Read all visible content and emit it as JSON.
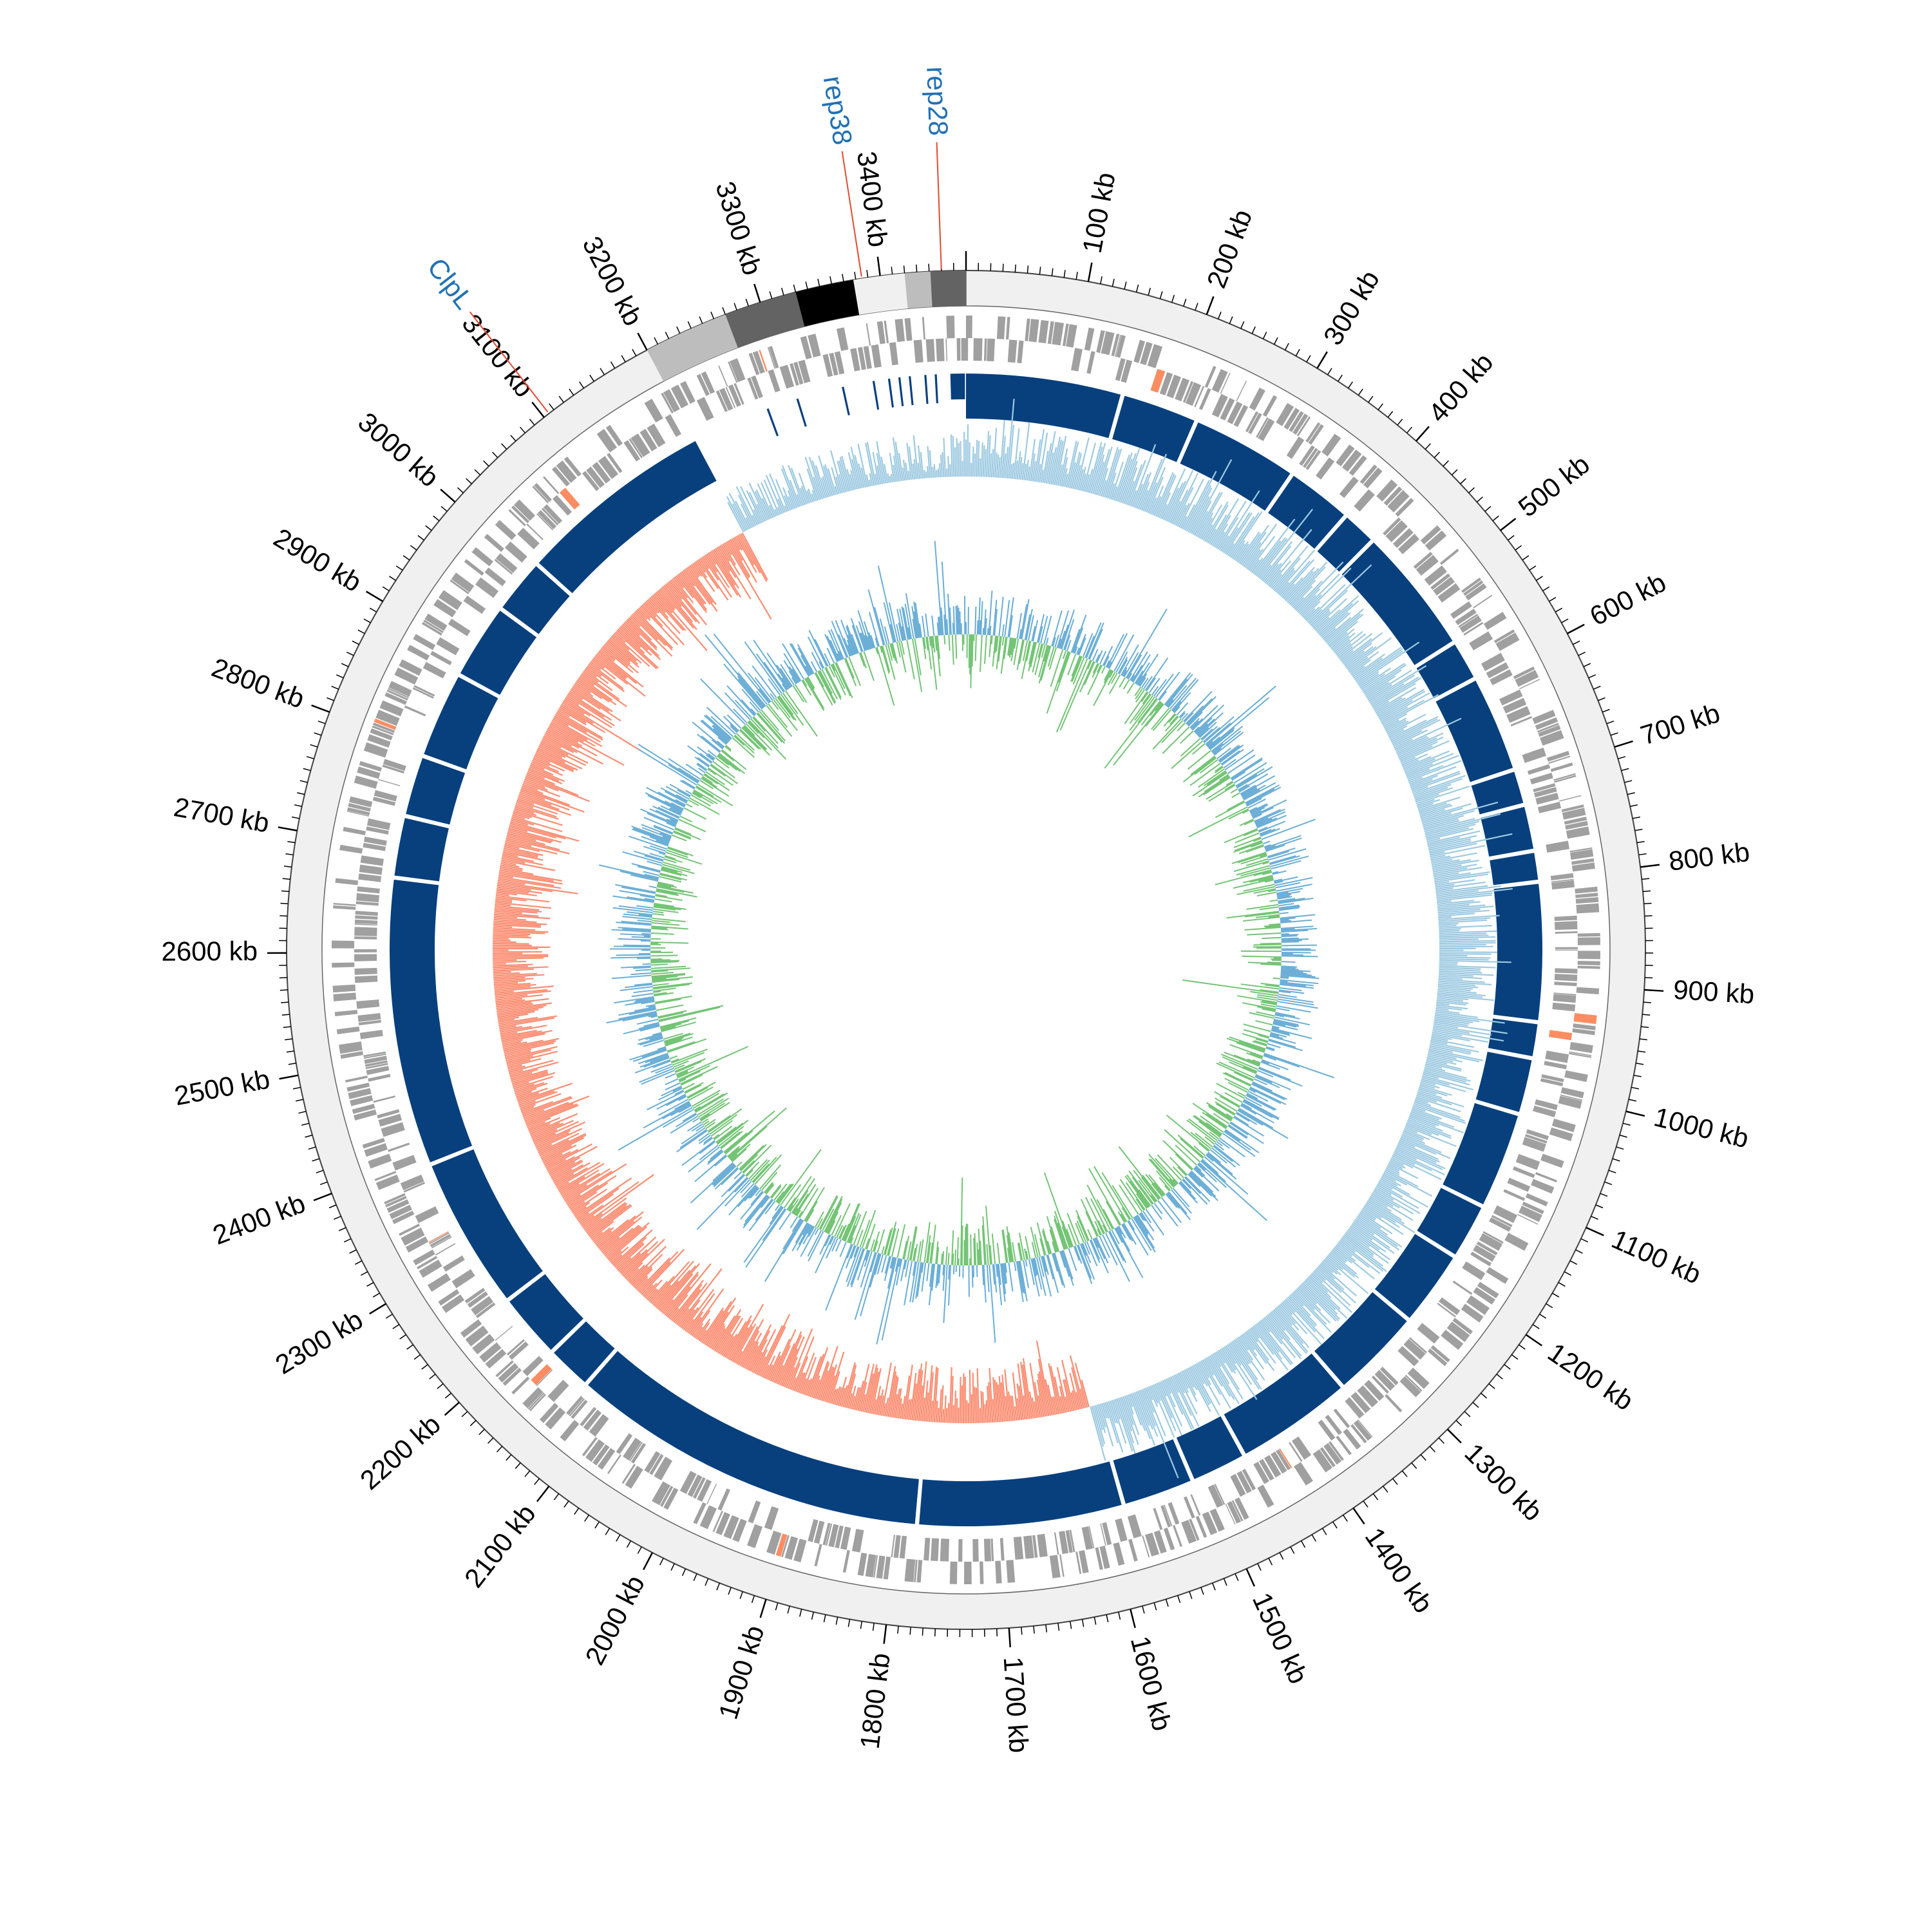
{
  "genome": {
    "length_kb": 3470,
    "tick_labels": [
      "100 kb",
      "200 kb",
      "300 kb",
      "400 kb",
      "500 kb",
      "600 kb",
      "700 kb",
      "800 kb",
      "900 kb",
      "1000 kb",
      "1100 kb",
      "1200 kb",
      "1300 kb",
      "1400 kb",
      "1500 kb",
      "1600 kb",
      "1700 kb",
      "1800 kb",
      "1900 kb",
      "2000 kb",
      "2100 kb",
      "2200 kb",
      "2300 kb",
      "2400 kb",
      "2500 kb",
      "2600 kb",
      "2700 kb",
      "2800 kb",
      "2900 kb",
      "3000 kb",
      "3100 kb",
      "3200 kb",
      "3300 kb",
      "3400 kb"
    ],
    "tick_values_kb": [
      100,
      200,
      300,
      400,
      500,
      600,
      700,
      800,
      900,
      1000,
      1100,
      1200,
      1300,
      1400,
      1500,
      1600,
      1700,
      1800,
      1900,
      2000,
      2100,
      2200,
      2300,
      2400,
      2500,
      2600,
      2700,
      2800,
      2900,
      3000,
      3100,
      3200,
      3300,
      3400
    ]
  },
  "annotations": [
    {
      "label": "rep28",
      "position_kb": 3450
    },
    {
      "label": "rep38",
      "position_kb": 3385
    },
    {
      "label": "ClpL",
      "position_kb": 3105
    }
  ],
  "contig_blocks_kb": [
    {
      "start": 3200,
      "end": 3270,
      "shade": "#bdbdbd"
    },
    {
      "start": 3270,
      "end": 3330,
      "shade": "#636363"
    },
    {
      "start": 3330,
      "end": 3378,
      "shade": "#000000"
    },
    {
      "start": 3378,
      "end": 3420,
      "shade": "#f0f0f0"
    },
    {
      "start": 3420,
      "end": 3441,
      "shade": "#bdbdbd"
    },
    {
      "start": 3441,
      "end": 3470,
      "shade": "#636363"
    }
  ],
  "blue_track_gaps_kb": [
    150,
    225,
    330,
    395,
    430,
    555,
    595,
    690,
    725,
    770,
    800,
    935,
    970,
    1025,
    1120,
    1175,
    1250,
    1340,
    1455,
    1510,
    1580,
    1780,
    2130,
    2175,
    2240,
    2390,
    2670,
    2730,
    2790,
    2875,
    2950,
    3005
  ],
  "gc_skew": {
    "positive_start_kb": 0,
    "positive_end_kb": 1590,
    "negative_start_kb": 1590,
    "negative_end_kb": 3200
  },
  "colors": {
    "ring_background": "#f0f0f0",
    "gene_track": "#a0a0a0",
    "gene_highlight": "#fc8d62",
    "blast_track": "#08407e",
    "skew_positive": "#9ecae1",
    "skew_negative": "#fc8d72",
    "gc_content_positive": "#6baed6",
    "gc_content_negative": "#74c476",
    "annotation_label": "#2171b5",
    "annotation_line": "#e34a33"
  }
}
